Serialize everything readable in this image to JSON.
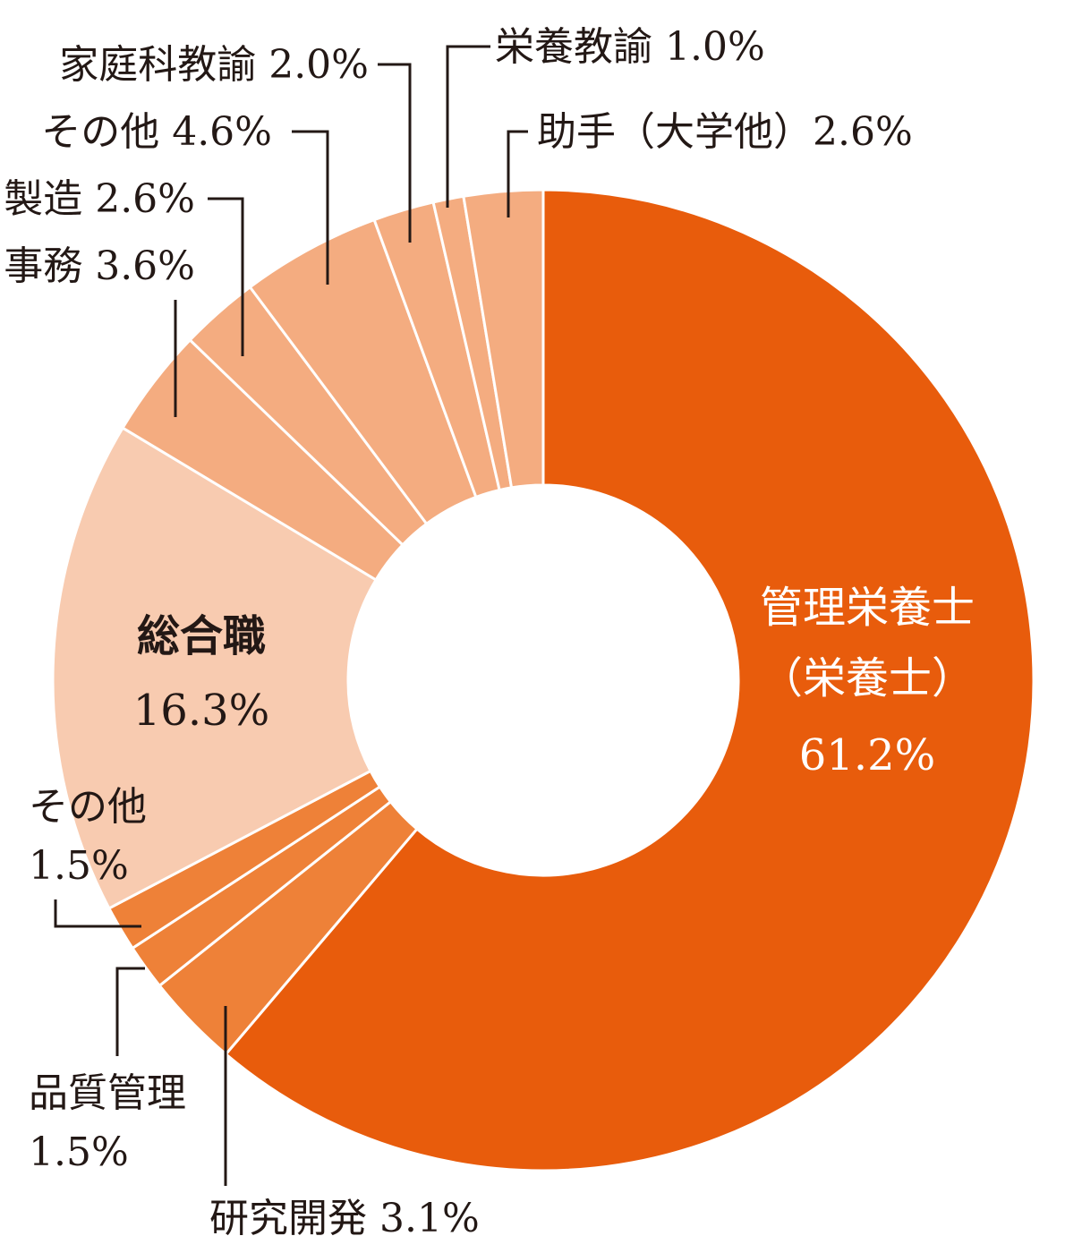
{
  "chart_data": {
    "type": "pie",
    "title": "",
    "donut": true,
    "categories": [
      "管理栄養士（栄養士）",
      "研究開発",
      "品質管理",
      "その他",
      "総合職",
      "事務",
      "製造",
      "その他",
      "家庭科教諭",
      "栄養教諭",
      "助手（大学他）"
    ],
    "values": [
      61.2,
      3.1,
      1.5,
      1.5,
      16.3,
      3.6,
      2.6,
      4.6,
      2.0,
      1.0,
      2.6
    ],
    "colors": [
      "#E85C0C",
      "#EE8138",
      "#EE8138",
      "#EE8138",
      "#F8CBB0",
      "#F4AC80",
      "#F4AC80",
      "#F4AC80",
      "#F4AC80",
      "#F4AC80",
      "#F4AC80"
    ],
    "start": "12 o'clock, clockwise"
  },
  "labels": {
    "kanri": {
      "line1": "管理栄養士",
      "line2": "（栄養士）",
      "value": "61.2%"
    },
    "sogo": {
      "line1": "総合職",
      "value": "16.3%"
    },
    "kenkyu": "研究開発 3.1%",
    "hinshitsu": {
      "line1": "品質管理",
      "value": "1.5%"
    },
    "sonota_low": {
      "line1": "その他",
      "value": "1.5%"
    },
    "jimu": "事務 3.6%",
    "seizo": "製造 2.6%",
    "sonota_high": "その他 4.6%",
    "katei": "家庭科教諭 2.0%",
    "eiyo": "栄養教諭 1.0%",
    "joshu": "助手（大学他）2.6%"
  }
}
